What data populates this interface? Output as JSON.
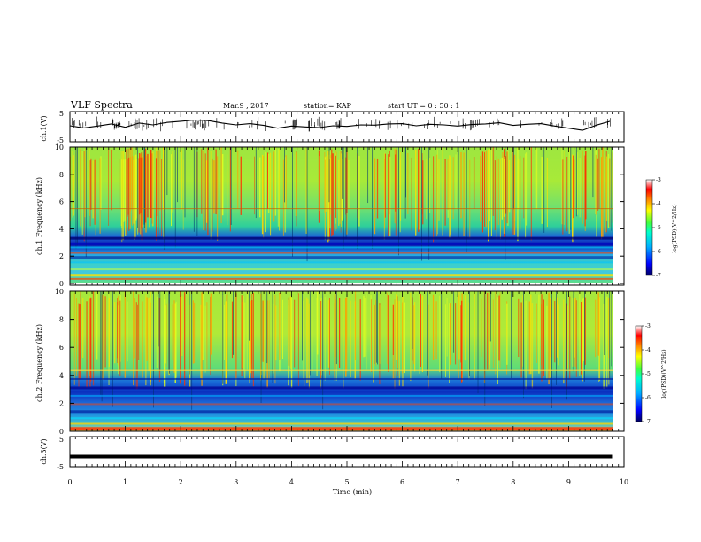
{
  "header": {
    "title": "VLF Spectra",
    "date": "Mar.9 , 2017",
    "station": "station= KAP",
    "start": "start UT = 0 : 50 : 1"
  },
  "chart_data": [
    {
      "type": "line",
      "name": "ch1-waveform",
      "ylabel": "ch.1(V)",
      "ylim": [
        -5,
        5
      ],
      "yticks": [
        "5",
        "-5"
      ],
      "xlim": [
        0,
        10
      ],
      "x": [
        0,
        0.25,
        0.5,
        0.75,
        1,
        1.25,
        1.5,
        1.75,
        2,
        2.25,
        2.5,
        2.75,
        3,
        3.25,
        3.5,
        3.75,
        4,
        4.25,
        4.5,
        4.75,
        5,
        5.25,
        5.5,
        5.75,
        6,
        6.25,
        6.5,
        6.75,
        7,
        7.25,
        7.5,
        7.75,
        8,
        8.25,
        8.5,
        8.75,
        9,
        9.25,
        9.5,
        9.75
      ],
      "y": [
        0.3,
        -0.4,
        0.2,
        0.9,
        -0.2,
        1.2,
        0.6,
        1.4,
        1.8,
        2.2,
        2.0,
        1.2,
        0.6,
        1.0,
        0.4,
        -0.5,
        0.2,
        -0.1,
        -0.3,
        0.3,
        0.1,
        0.6,
        0.5,
        0.9,
        1.0,
        0.3,
        0.8,
        0.6,
        0.2,
        0.7,
        0.9,
        1.3,
        0.4,
        0.8,
        1.0,
        0.2,
        -0.5,
        -1.2,
        0.5,
        1.8
      ]
    },
    {
      "type": "heatmap",
      "name": "ch1-spectrogram",
      "ylabel": "ch.1 Frequency (kHz)",
      "yticks": [
        "0",
        "2",
        "4",
        "6",
        "8",
        "10"
      ],
      "ylim": [
        0,
        10
      ],
      "xlim": [
        0,
        10
      ],
      "colorbar": {
        "label": "log(PSD)(V^2/Hz)",
        "ticks": [
          "-3",
          "-4",
          "-5",
          "-6",
          "-7"
        ],
        "range": [
          -7,
          -3
        ]
      }
    },
    {
      "type": "heatmap",
      "name": "ch2-spectrogram",
      "ylabel": "ch.2 Frequency (kHz)",
      "yticks": [
        "0",
        "2",
        "4",
        "6",
        "8",
        "10"
      ],
      "ylim": [
        0,
        10
      ],
      "xlim": [
        0,
        10
      ],
      "colorbar": {
        "label": "log(PSD)(V^2/Hz)",
        "ticks": [
          "-3",
          "-4",
          "-5",
          "-6",
          "-7"
        ],
        "range": [
          -7,
          -3
        ]
      }
    },
    {
      "type": "line",
      "name": "ch3-waveform",
      "ylabel": "ch.3(V)",
      "ylim": [
        -5,
        5
      ],
      "yticks": [
        "5",
        "-5"
      ],
      "xlim": [
        0,
        10
      ],
      "x": [
        0,
        9.8
      ],
      "y": [
        -1.6,
        -1.6
      ]
    }
  ],
  "xaxis": {
    "label": "Time (min)",
    "ticks": [
      "0",
      "1",
      "2",
      "3",
      "4",
      "5",
      "6",
      "7",
      "8",
      "9",
      "10"
    ]
  },
  "colors": {
    "trace": "#000000",
    "colormap": [
      "#000070",
      "#0000ff",
      "#00b4ff",
      "#00ffc8",
      "#60ff40",
      "#ffff00",
      "#ff8000",
      "#ff0000",
      "#ffffff"
    ]
  }
}
